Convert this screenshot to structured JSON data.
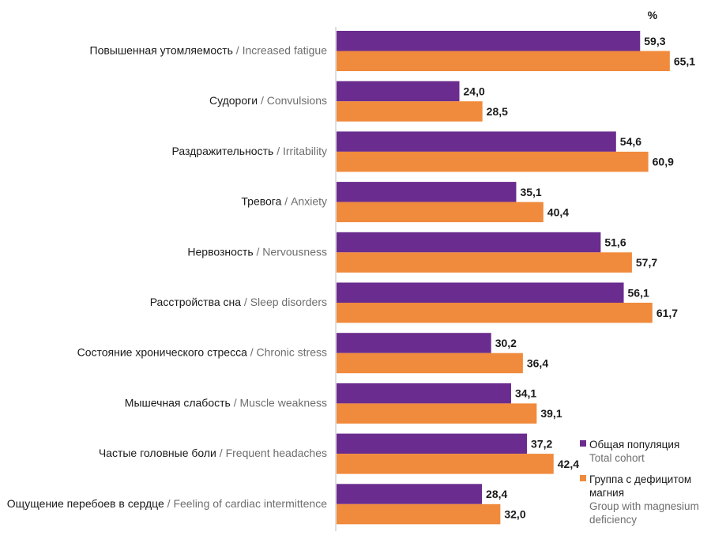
{
  "chart_data": {
    "type": "bar",
    "orientation": "horizontal",
    "unit_label": "%",
    "xlim": [
      0,
      100
    ],
    "grid": false,
    "legend_position": "bottom-right",
    "colors": {
      "total": "#6a2c8e",
      "mg": "#f08a3c"
    },
    "categories": [
      {
        "ru": "Повышенная утомляемость",
        "en": "Increased fatigue"
      },
      {
        "ru": "Судороги",
        "en": "Convulsions"
      },
      {
        "ru": "Раздражительность",
        "en": "Irritability"
      },
      {
        "ru": "Тревога",
        "en": "Anxiety"
      },
      {
        "ru": "Нервозность",
        "en": "Nervousness"
      },
      {
        "ru": "Расстройства сна",
        "en": "Sleep disorders"
      },
      {
        "ru": "Состояние хронического стресса",
        "en": "Chronic stress"
      },
      {
        "ru": "Мышечная слабость",
        "en": "Muscle weakness"
      },
      {
        "ru": "Частые головные боли",
        "en": "Frequent headaches"
      },
      {
        "ru": "Ощущение перебоев в сердце",
        "en": "Feeling of cardiac intermittence"
      }
    ],
    "series": [
      {
        "name_ru": "Общая популяция",
        "name_en": "Total cohort",
        "values": [
          59.3,
          24.0,
          54.6,
          35.1,
          51.6,
          56.1,
          30.2,
          34.1,
          37.2,
          28.4
        ],
        "labels": [
          "59,3",
          "24,0",
          "54,6",
          "35,1",
          "51,6",
          "56,1",
          "30,2",
          "34,1",
          "37,2",
          "28,4"
        ]
      },
      {
        "name_ru": "Группа с дефицитом магния",
        "name_en": "Group with magnesium deficiency",
        "values": [
          65.1,
          28.5,
          60.9,
          40.4,
          57.7,
          61.7,
          36.4,
          39.1,
          42.4,
          32.0
        ],
        "labels": [
          "65,1",
          "28,5",
          "60,9",
          "40,4",
          "57,7",
          "61,7",
          "36,4",
          "39,1",
          "42,4",
          "32,0"
        ]
      }
    ],
    "legend": [
      {
        "ru": "Общая популяция",
        "en": [
          "Total cohort"
        ]
      },
      {
        "ru": [
          "Группа с дефицитом",
          "магния"
        ],
        "en": [
          "Group with magnesium",
          "deficiency"
        ]
      }
    ]
  }
}
